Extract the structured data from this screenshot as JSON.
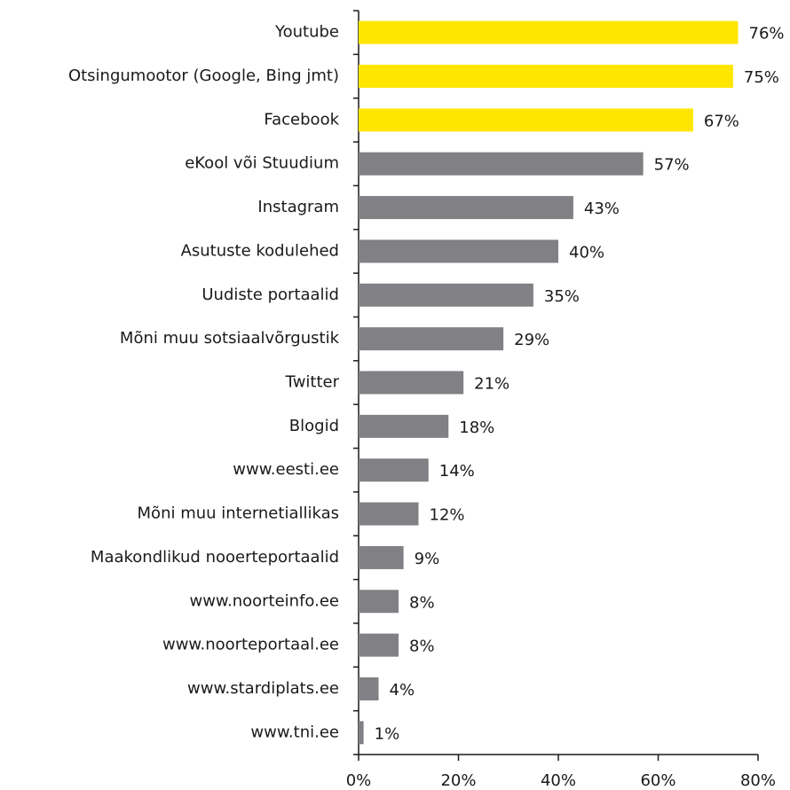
{
  "chart_data": {
    "type": "bar",
    "orientation": "horizontal",
    "categories": [
      "Youtube",
      "Otsingumootor (Google, Bing jmt)",
      "Facebook",
      "eKool või Stuudium",
      "Instagram",
      "Asutuste kodulehed",
      "Uudiste portaalid",
      "Mõni muu sotsiaalvõrgustik",
      "Twitter",
      "Blogid",
      "www.eesti.ee",
      "Mõni muu internetiallikas",
      "Maakondlikud nooerteportaalid",
      "www.noorteinfo.ee",
      "www.noorteportaal.ee",
      "www.stardiplats.ee",
      "www.tni.ee"
    ],
    "values": [
      76,
      75,
      67,
      57,
      43,
      40,
      35,
      29,
      21,
      18,
      14,
      12,
      9,
      8,
      8,
      4,
      1
    ],
    "value_labels": [
      "76%",
      "75%",
      "67%",
      "57%",
      "43%",
      "40%",
      "35%",
      "29%",
      "21%",
      "18%",
      "14%",
      "12%",
      "9%",
      "8%",
      "8%",
      "4%",
      "1%"
    ],
    "colors": [
      "#ffe600",
      "#ffe600",
      "#ffe600",
      "#808085",
      "#808085",
      "#808085",
      "#808085",
      "#808085",
      "#808085",
      "#808085",
      "#808085",
      "#808085",
      "#808085",
      "#808085",
      "#808085",
      "#808085",
      "#808085"
    ],
    "xlim": [
      0,
      80
    ],
    "xticks": [
      {
        "value": 0,
        "label": "0%"
      },
      {
        "value": 20,
        "label": "20%"
      },
      {
        "value": 40,
        "label": "40%"
      },
      {
        "value": 60,
        "label": "60%"
      },
      {
        "value": 80,
        "label": "80%"
      }
    ],
    "grid": false
  }
}
